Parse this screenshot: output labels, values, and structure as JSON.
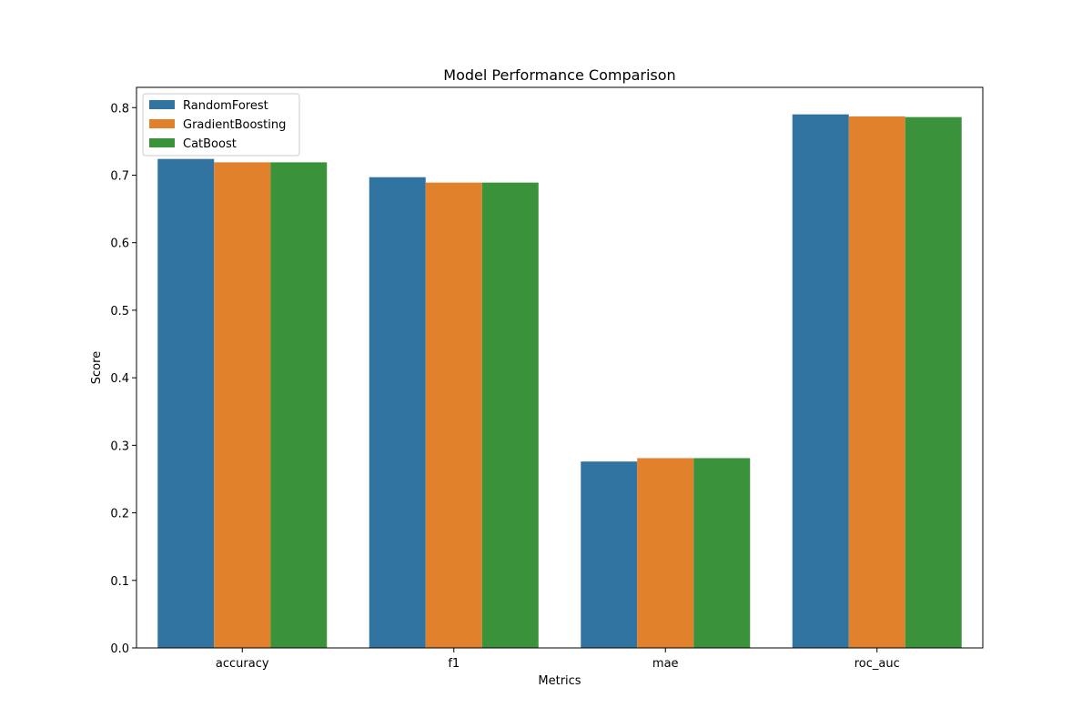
{
  "chart_data": {
    "type": "bar",
    "title": "Model Performance Comparison",
    "xlabel": "Metrics",
    "ylabel": "Score",
    "categories": [
      "accuracy",
      "f1",
      "mae",
      "roc_auc"
    ],
    "ylim": [
      0,
      0.83
    ],
    "yticks": [
      0.0,
      0.1,
      0.2,
      0.3,
      0.4,
      0.5,
      0.6,
      0.7,
      0.8
    ],
    "ytick_labels": [
      "0.0",
      "0.1",
      "0.2",
      "0.3",
      "0.4",
      "0.5",
      "0.6",
      "0.7",
      "0.8"
    ],
    "grid": false,
    "legend_position": "top-left",
    "series": [
      {
        "name": "RandomForest",
        "color": "#3274a1",
        "values": [
          0.724,
          0.697,
          0.276,
          0.79
        ]
      },
      {
        "name": "GradientBoosting",
        "color": "#e1812c",
        "values": [
          0.719,
          0.689,
          0.281,
          0.787
        ]
      },
      {
        "name": "CatBoost",
        "color": "#3a923a",
        "values": [
          0.719,
          0.689,
          0.281,
          0.786
        ]
      }
    ]
  }
}
